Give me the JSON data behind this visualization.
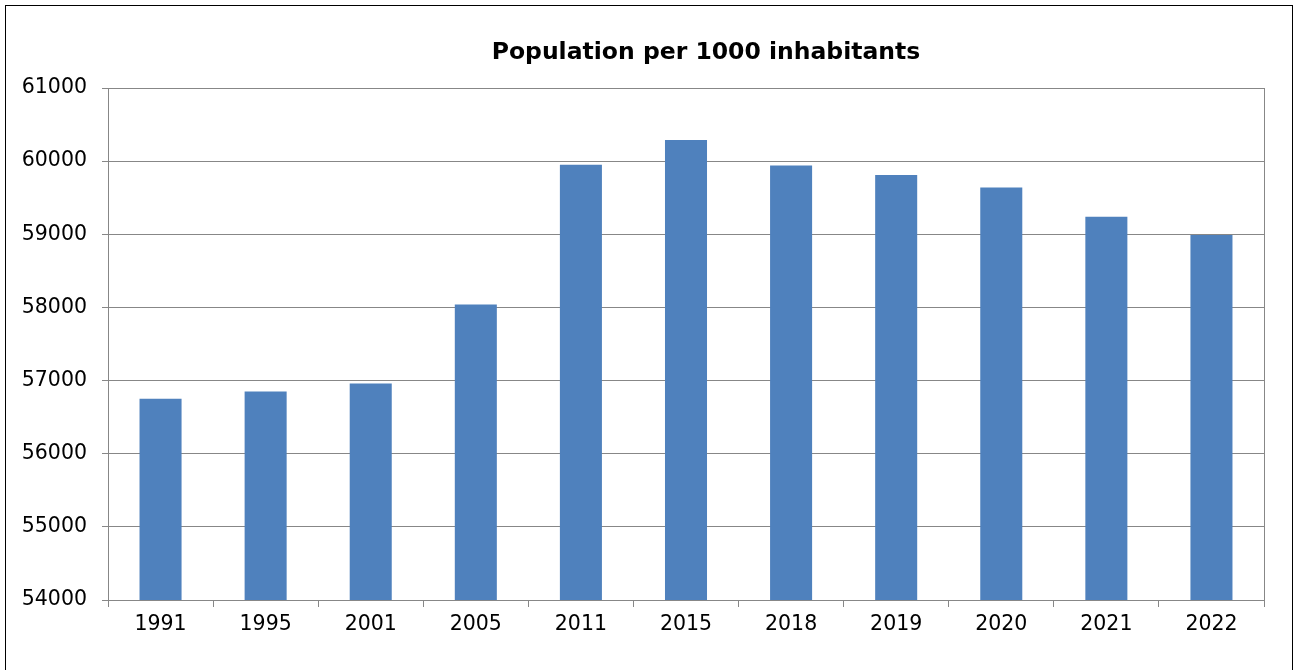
{
  "chart_data": {
    "type": "bar",
    "title": "Population per 1000 inhabitants",
    "categories": [
      "1991",
      "1995",
      "2001",
      "2005",
      "2011",
      "2015",
      "2018",
      "2019",
      "2020",
      "2021",
      "2022"
    ],
    "values": [
      56750,
      56850,
      56960,
      58040,
      59950,
      60290,
      59940,
      59810,
      59640,
      59240,
      58990
    ],
    "color": "#4f81bd",
    "ylim": [
      54000,
      61000
    ],
    "yticks": [
      54000,
      55000,
      56000,
      57000,
      58000,
      59000,
      60000,
      61000
    ],
    "grid": "y"
  }
}
